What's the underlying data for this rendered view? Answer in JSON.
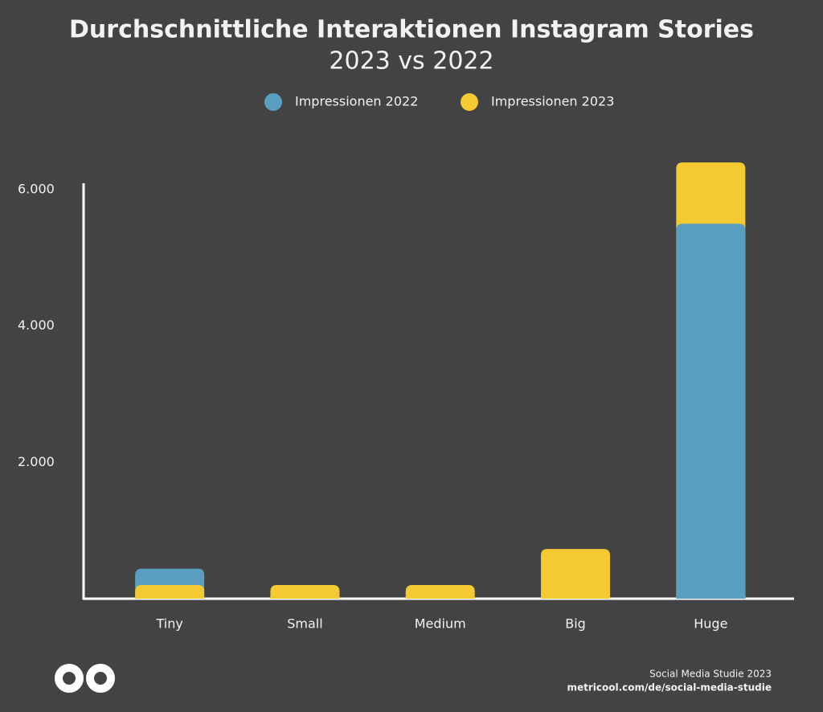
{
  "chart_data": {
    "type": "bar",
    "title": "Durchschnittliche Interaktionen Instagram Stories",
    "subtitle": "2023 vs 2022",
    "categories": [
      "Tiny",
      "Small",
      "Medium",
      "Big",
      "Huge"
    ],
    "series": [
      {
        "name": "Impressionen 2022",
        "color": "#5a9fc0",
        "values": [
          440,
          null,
          null,
          null,
          5500
        ]
      },
      {
        "name": "Impressionen 2023",
        "color": "#f5c932",
        "values": [
          200,
          200,
          200,
          730,
          6400
        ]
      }
    ],
    "ylim": [
      0,
      6000
    ],
    "yticks": [
      {
        "value": 2000,
        "label": "2.000"
      },
      {
        "value": 4000,
        "label": "4.000"
      },
      {
        "value": 6000,
        "label": "6.000"
      }
    ],
    "grid": false,
    "legend": "top",
    "footer": {
      "line1": "Social Media Studie 2023",
      "line2": "metricool.com/de/social-media-studie"
    }
  }
}
